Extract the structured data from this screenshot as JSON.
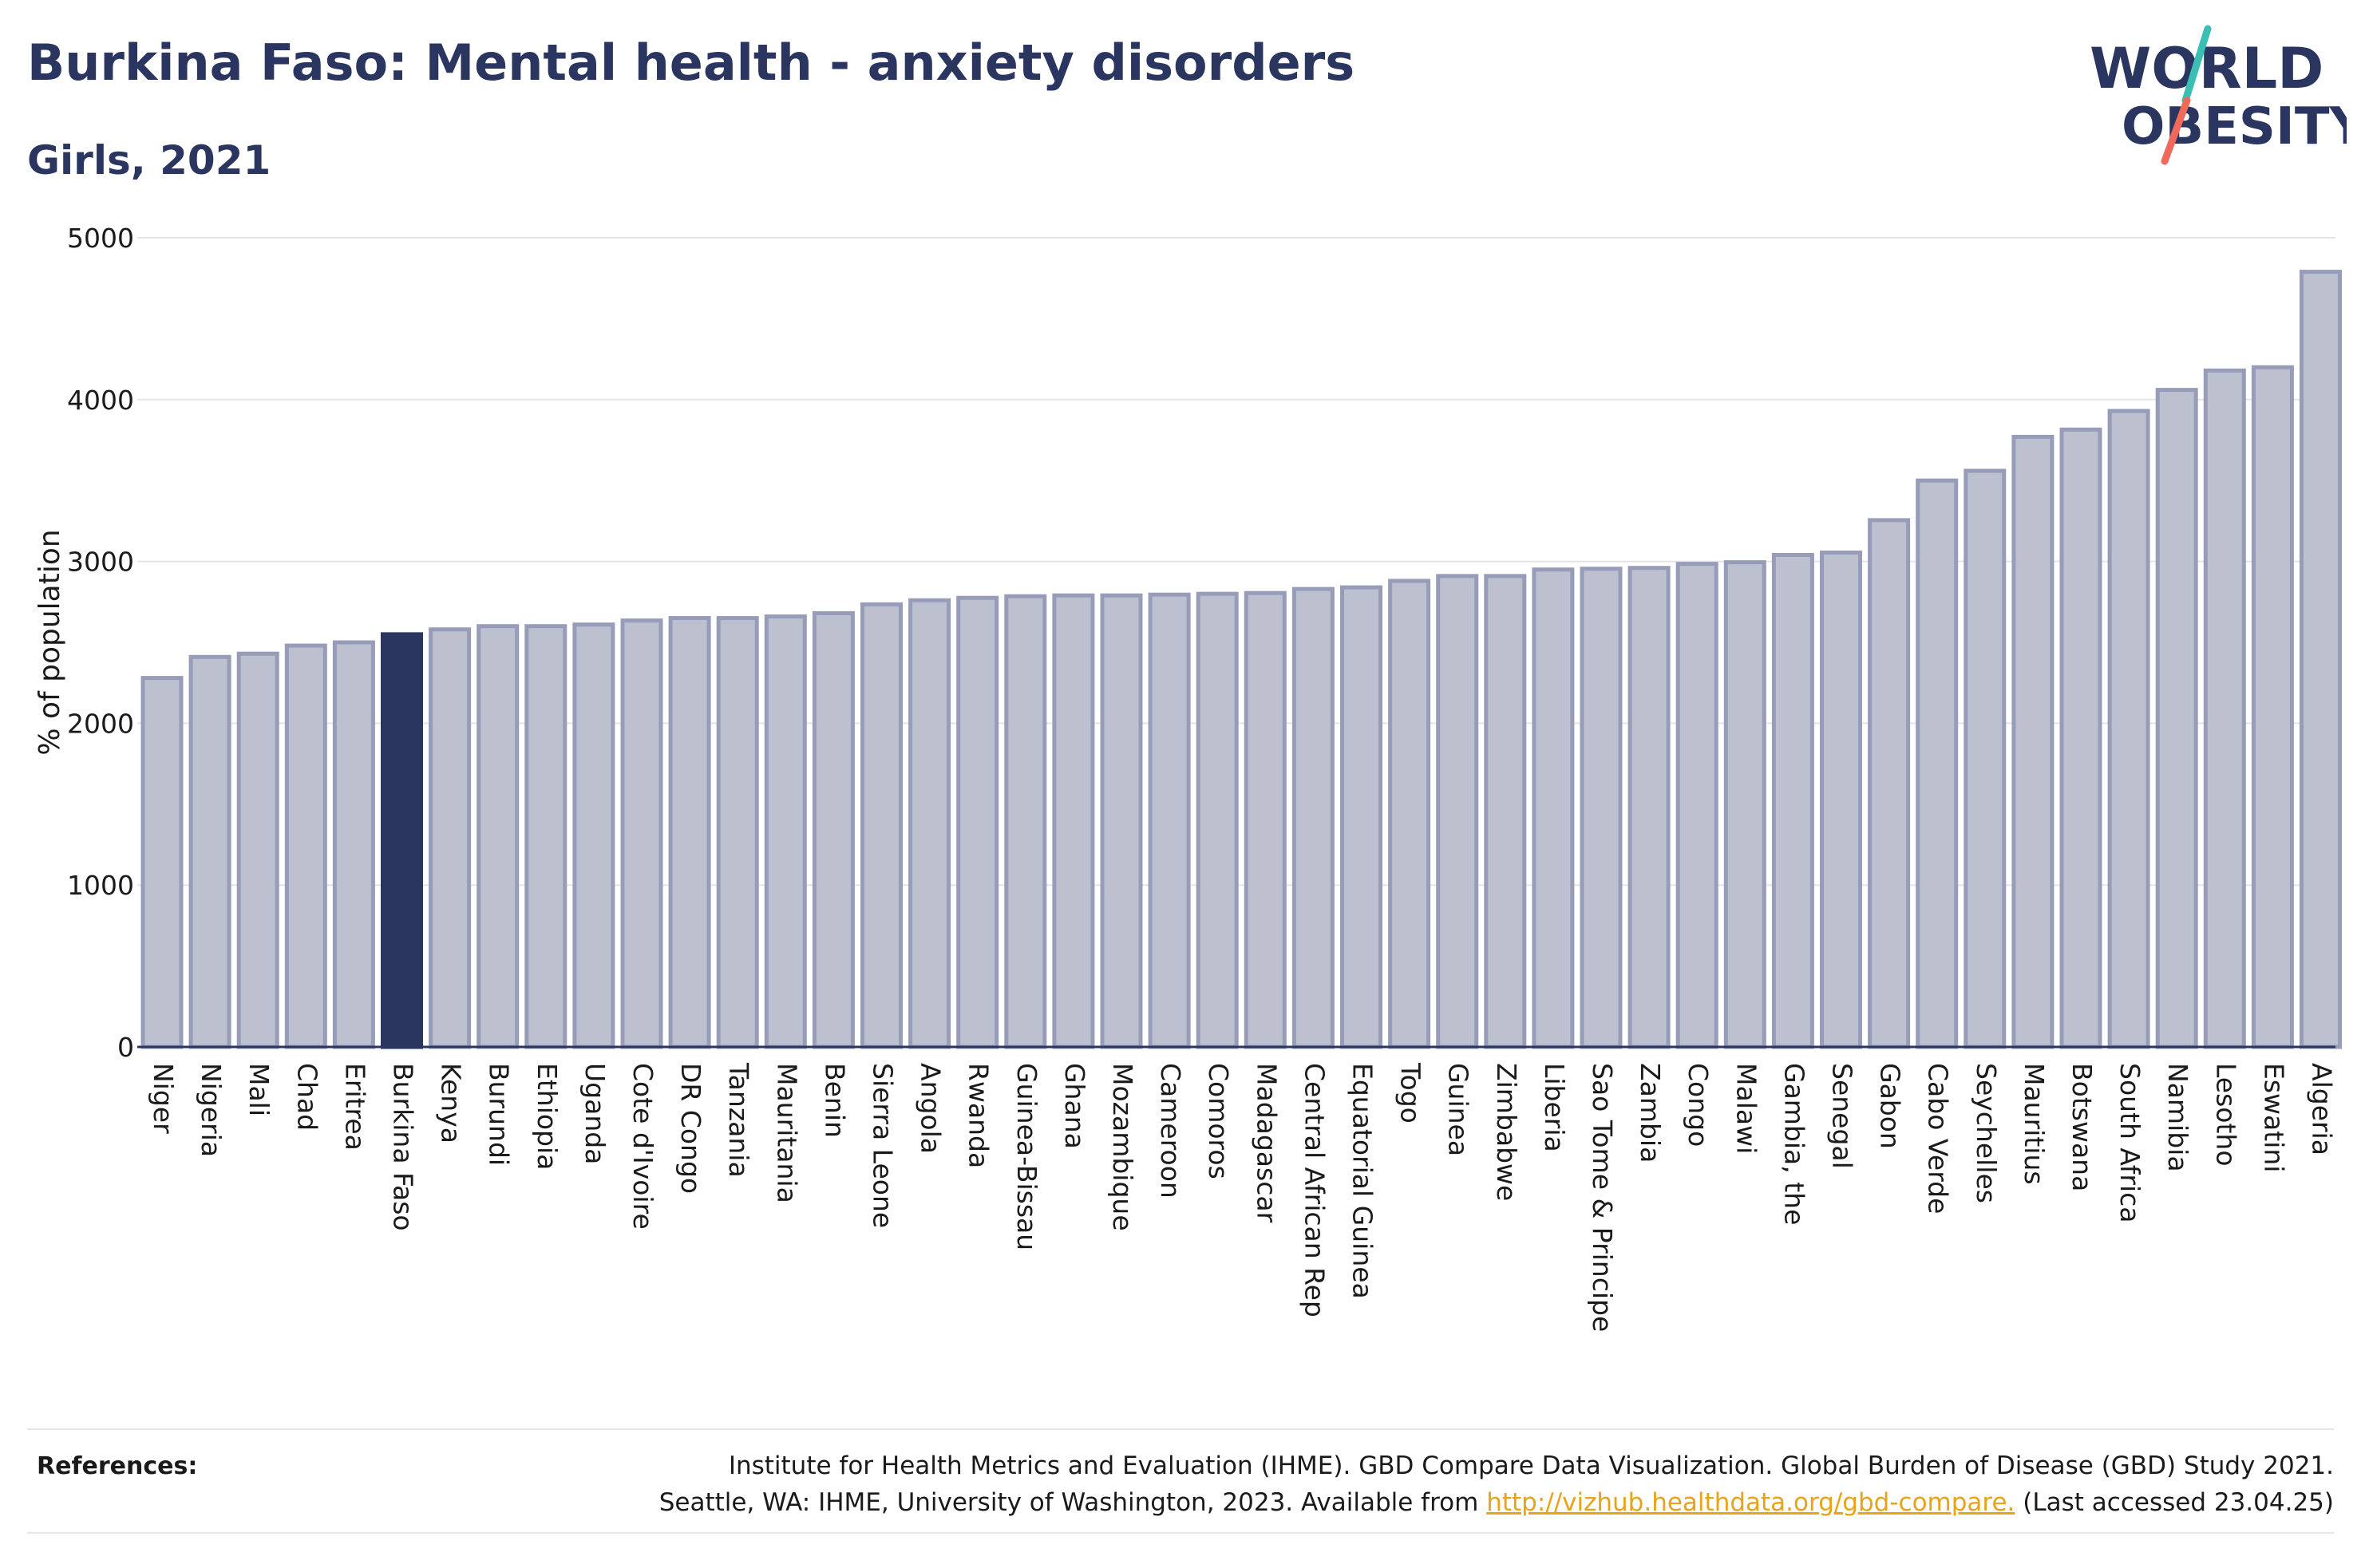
{
  "header": {
    "title": "Burkina Faso: Mental health - anxiety disorders",
    "subtitle": "Girls, 2021"
  },
  "logo": {
    "line1": "WORLD",
    "line2": "OBESITY",
    "slash_colors": [
      "#3bbfb4",
      "#ef6a5a"
    ]
  },
  "colors": {
    "highlight": "#2b3660",
    "bar_fill": "#bcc0cf",
    "bar_stroke": "#979cb8",
    "grid": "#e5e5e9",
    "axis": "#2b3660"
  },
  "chart_data": {
    "type": "bar",
    "ylabel": "% of population",
    "ylim": [
      0,
      5000
    ],
    "yticks": [
      0,
      1000,
      2000,
      3000,
      4000,
      5000
    ],
    "grid": true,
    "highlight": "Burkina Faso",
    "categories": [
      "Niger",
      "Nigeria",
      "Mali",
      "Chad",
      "Eritrea",
      "Burkina Faso",
      "Kenya",
      "Burundi",
      "Ethiopia",
      "Uganda",
      "Cote d'Ivoire",
      "DR Congo",
      "Tanzania",
      "Mauritania",
      "Benin",
      "Sierra Leone",
      "Angola",
      "Rwanda",
      "Guinea-Bissau",
      "Ghana",
      "Mozambique",
      "Cameroon",
      "Comoros",
      "Madagascar",
      "Central African Rep",
      "Equatorial Guinea",
      "Togo",
      "Guinea",
      "Zimbabwe",
      "Liberia",
      "Sao Tome & Principe",
      "Zambia",
      "Congo",
      "Malawi",
      "Gambia, the",
      "Senegal",
      "Gabon",
      "Cabo Verde",
      "Seychelles",
      "Mauritius",
      "Botswana",
      "South Africa",
      "Namibia",
      "Lesotho",
      "Eswatini",
      "Algeria"
    ],
    "values": [
      2280,
      2410,
      2430,
      2480,
      2500,
      2550,
      2580,
      2600,
      2600,
      2610,
      2635,
      2650,
      2650,
      2660,
      2680,
      2735,
      2760,
      2775,
      2785,
      2790,
      2790,
      2795,
      2800,
      2805,
      2830,
      2840,
      2880,
      2910,
      2910,
      2950,
      2955,
      2960,
      2985,
      2995,
      3040,
      3055,
      3255,
      3500,
      3560,
      3770,
      3815,
      3930,
      4060,
      4180,
      4200,
      4790
    ]
  },
  "references": {
    "label": "References:",
    "line1": "Institute for Health Metrics and Evaluation (IHME). GBD Compare Data Visualization. Global Burden of Disease (GBD) Study 2021.",
    "line2_prefix": "Seattle, WA: IHME, University of Washington, 2023. Available from",
    "link": "http://vizhub.healthdata.org/gbd-compare.",
    "line2_suffix": "(Last accessed 23.04.25)"
  }
}
